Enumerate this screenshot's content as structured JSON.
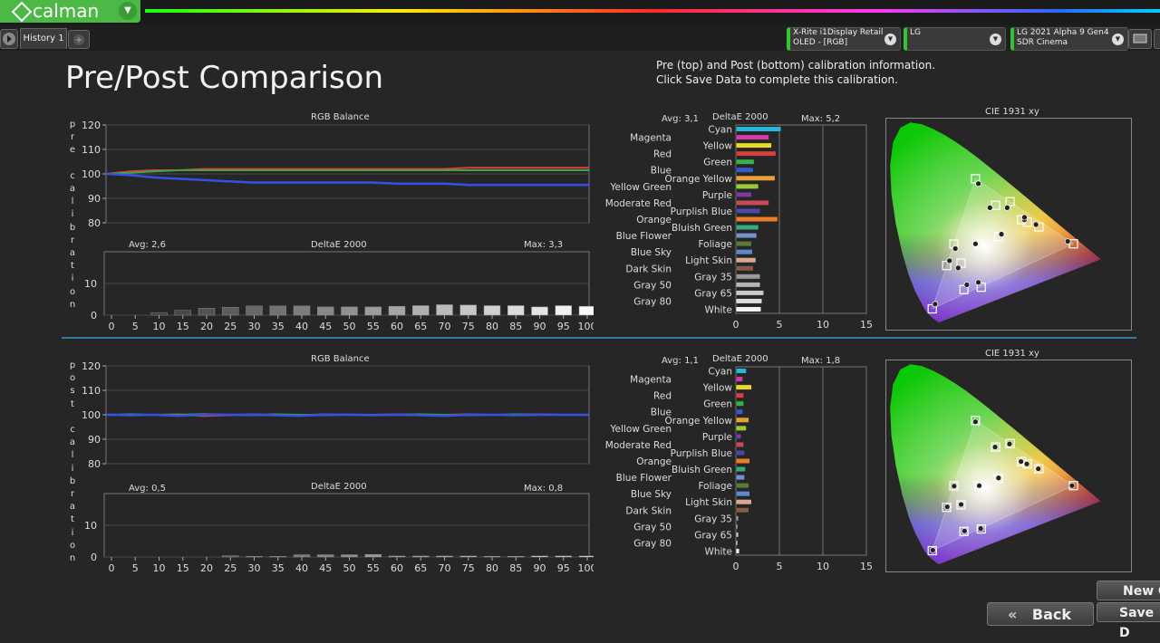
{
  "app": {
    "name": "calman",
    "tab": "History 1"
  },
  "devices": [
    {
      "line1": "X-Rite i1Display Retail",
      "line2": "OLED - [RGB]"
    },
    {
      "line1": "LG",
      "line2": ""
    },
    {
      "line1": "LG 2021 Alpha 9 Gen4",
      "line2": "SDR Cinema"
    }
  ],
  "page": {
    "title": "Pre/Post Comparison",
    "info_line1": "Pre (top) and Post (bottom) calibration information.",
    "info_line2": "Click Save Data to complete this calibration."
  },
  "labels": {
    "pre_side": "pre calibration",
    "post_side": "post calibration",
    "rgb_balance": "RGB Balance",
    "deltae": "DeltaE 2000",
    "cie": "CIE 1931 xy"
  },
  "pre": {
    "gray_avg": "Avg: 2,6",
    "gray_max": "Max: 3,3",
    "color_avg": "Avg: 3,1",
    "color_max": "Max: 5,2"
  },
  "post": {
    "gray_avg": "Avg: 0,5",
    "gray_max": "Max: 0,8",
    "color_avg": "Avg: 1,1",
    "color_max": "Max: 1,8"
  },
  "buttons": {
    "new": "New C",
    "back": "Back",
    "save": "Save D"
  },
  "chart_data": [
    {
      "type": "line",
      "title": "RGB Balance",
      "section": "pre",
      "x": [
        0,
        5,
        10,
        15,
        20,
        25,
        30,
        35,
        40,
        45,
        50,
        55,
        60,
        65,
        70,
        75,
        80,
        85,
        90,
        95,
        100
      ],
      "ylim": [
        80,
        120
      ],
      "yticks": [
        80,
        90,
        100,
        110,
        120
      ],
      "series": [
        {
          "color": "#e04040",
          "values": [
            100,
            101,
            101.5,
            101.5,
            102,
            102,
            102,
            102,
            102,
            102,
            102,
            102,
            102,
            102,
            102,
            102.5,
            102.5,
            102.5,
            102.5,
            102.5,
            102.5
          ]
        },
        {
          "color": "#3fa63f",
          "values": [
            100,
            100.5,
            101,
            101.5,
            101.5,
            101.5,
            101.5,
            101.5,
            101.5,
            101.5,
            101.5,
            101.5,
            101.5,
            101.5,
            101.5,
            101.5,
            101.5,
            101.5,
            101.5,
            101.5,
            101.5
          ]
        },
        {
          "color": "#3450e8",
          "values": [
            100,
            99.5,
            98.5,
            98,
            97.5,
            97,
            96.5,
            96.5,
            96.5,
            96.5,
            96.5,
            96.5,
            96,
            96,
            96,
            95.5,
            95.5,
            95.5,
            95.5,
            95.5,
            95.5
          ]
        }
      ]
    },
    {
      "type": "bar",
      "title": "DeltaE 2000",
      "section": "pre",
      "categories": [
        "0",
        "5",
        "10",
        "15",
        "20",
        "25",
        "30",
        "35",
        "40",
        "45",
        "50",
        "55",
        "60",
        "65",
        "70",
        "75",
        "80",
        "85",
        "90",
        "95",
        "100"
      ],
      "values": [
        0,
        0,
        0.8,
        1.5,
        2.2,
        2.5,
        2.9,
        2.9,
        2.9,
        2.6,
        2.6,
        2.6,
        2.8,
        3.0,
        3.3,
        3.2,
        3.0,
        3.0,
        2.6,
        3.0,
        2.8
      ],
      "ylim": [
        0,
        20
      ],
      "yticks": [
        0,
        10
      ]
    },
    {
      "type": "bar",
      "title": "DeltaE 2000",
      "section": "pre-colors",
      "categories": [
        "Cyan",
        "Magenta",
        "Yellow",
        "Red",
        "Green",
        "Blue",
        "Orange Yellow",
        "Yellow Green",
        "Purple",
        "Moderate Red",
        "Purplish Blue",
        "Orange",
        "Bluish Green",
        "Blue Flower",
        "Foliage",
        "Blue Sky",
        "Light Skin",
        "Dark Skin",
        "Gray 35",
        "Gray 50",
        "Gray 65",
        "Gray 80",
        "White"
      ],
      "values": [
        5.2,
        3.8,
        4.1,
        4.6,
        2.1,
        2.0,
        4.5,
        2.6,
        1.8,
        3.8,
        2.8,
        4.8,
        2.6,
        2.4,
        1.8,
        1.9,
        2.3,
        2.0,
        2.8,
        2.8,
        3.2,
        3.0,
        2.9
      ],
      "colors": [
        "#28b8d6",
        "#d23ca6",
        "#e8d82c",
        "#d84040",
        "#3cb046",
        "#3a58c8",
        "#e8a03a",
        "#9ac83a",
        "#7a3aa0",
        "#c84a5a",
        "#4a4aa8",
        "#e87e28",
        "#3aa880",
        "#7890d0",
        "#5a7a3a",
        "#5a8ac8",
        "#d8a890",
        "#8a5a48",
        "#999999",
        "#b4b4b4",
        "#c8c8c8",
        "#dcdcdc",
        "#f2f2f2"
      ],
      "xlim": [
        0,
        15
      ],
      "xticks": [
        0,
        5,
        10,
        15
      ]
    },
    {
      "type": "line",
      "title": "RGB Balance",
      "section": "post",
      "x": [
        0,
        5,
        10,
        15,
        20,
        25,
        30,
        35,
        40,
        45,
        50,
        55,
        60,
        65,
        70,
        75,
        80,
        85,
        90,
        95,
        100
      ],
      "ylim": [
        80,
        120
      ],
      "yticks": [
        80,
        90,
        100,
        110,
        120
      ],
      "series": [
        {
          "color": "#e04040",
          "values": [
            100,
            100,
            100,
            100.2,
            99.5,
            99.8,
            100.2,
            100,
            99.8,
            100.2,
            100,
            100,
            100.2,
            100,
            100,
            100.2,
            100,
            100,
            100.2,
            100,
            100
          ]
        },
        {
          "color": "#3fa63f",
          "values": [
            100,
            100.2,
            100,
            100,
            100.3,
            100,
            99.8,
            100.2,
            100,
            99.8,
            100.1,
            100,
            100,
            100.2,
            100,
            99.8,
            100,
            100.2,
            100,
            100,
            100
          ]
        },
        {
          "color": "#3450e8",
          "values": [
            100,
            99.8,
            100,
            99.6,
            100,
            100,
            100,
            99.8,
            99.6,
            100,
            100,
            99.8,
            100,
            99.8,
            99.6,
            100,
            100,
            99.8,
            100,
            100,
            100
          ]
        }
      ]
    },
    {
      "type": "bar",
      "title": "DeltaE 2000",
      "section": "post",
      "categories": [
        "0",
        "5",
        "10",
        "15",
        "20",
        "25",
        "30",
        "35",
        "40",
        "45",
        "50",
        "55",
        "60",
        "65",
        "70",
        "75",
        "80",
        "85",
        "90",
        "95",
        "100"
      ],
      "values": [
        0,
        0,
        0,
        0,
        0,
        0.4,
        0.2,
        0.2,
        0.7,
        0.7,
        0.7,
        0.8,
        0.3,
        0.3,
        0.3,
        0.3,
        0.2,
        0.2,
        0.3,
        0.3,
        0.3
      ],
      "ylim": [
        0,
        20
      ],
      "yticks": [
        0,
        10
      ]
    },
    {
      "type": "bar",
      "title": "DeltaE 2000",
      "section": "post-colors",
      "categories": [
        "Cyan",
        "Magenta",
        "Yellow",
        "Red",
        "Green",
        "Blue",
        "Orange Yellow",
        "Yellow Green",
        "Purple",
        "Moderate Red",
        "Purplish Blue",
        "Orange",
        "Bluish Green",
        "Blue Flower",
        "Foliage",
        "Blue Sky",
        "Light Skin",
        "Dark Skin",
        "Gray 35",
        "Gray 50",
        "Gray 65",
        "Gray 80",
        "White"
      ],
      "values": [
        1.2,
        0.8,
        1.8,
        0.9,
        0.9,
        0.8,
        1.5,
        1.2,
        0.6,
        0.9,
        1.0,
        1.6,
        1.1,
        1.0,
        1.5,
        1.6,
        1.8,
        1.5,
        0.3,
        0.2,
        0.3,
        0.2,
        0.4
      ],
      "colors": [
        "#28b8d6",
        "#d23ca6",
        "#e8d82c",
        "#d84040",
        "#3cb046",
        "#3a58c8",
        "#e8a03a",
        "#9ac83a",
        "#7a3aa0",
        "#c84a5a",
        "#4a4aa8",
        "#e87e28",
        "#3aa880",
        "#7890d0",
        "#5a7a3a",
        "#5a8ac8",
        "#d8a890",
        "#8a5a48",
        "#999999",
        "#b4b4b4",
        "#c8c8c8",
        "#dcdcdc",
        "#f2f2f2"
      ],
      "xlim": [
        0,
        15
      ],
      "xticks": [
        0,
        5,
        10,
        15
      ]
    }
  ],
  "cie": {
    "pre": {
      "targets": [
        [
          0.64,
          0.33
        ],
        [
          0.3,
          0.6
        ],
        [
          0.15,
          0.06
        ],
        [
          0.225,
          0.329
        ],
        [
          0.32,
          0.15
        ],
        [
          0.42,
          0.505
        ],
        [
          0.3127,
          0.329
        ],
        [
          0.48,
          0.42
        ],
        [
          0.37,
          0.49
        ],
        [
          0.2,
          0.24
        ],
        [
          0.26,
          0.14
        ],
        [
          0.46,
          0.43
        ],
        [
          0.38,
          0.36
        ],
        [
          0.25,
          0.25
        ],
        [
          0.52,
          0.4
        ]
      ],
      "measured": [
        [
          0.62,
          0.34
        ],
        [
          0.31,
          0.58
        ],
        [
          0.16,
          0.08
        ],
        [
          0.23,
          0.31
        ],
        [
          0.31,
          0.17
        ],
        [
          0.41,
          0.48
        ],
        [
          0.3,
          0.33
        ],
        [
          0.47,
          0.43
        ],
        [
          0.35,
          0.48
        ],
        [
          0.21,
          0.26
        ],
        [
          0.27,
          0.16
        ],
        [
          0.47,
          0.44
        ],
        [
          0.39,
          0.37
        ],
        [
          0.24,
          0.23
        ],
        [
          0.51,
          0.41
        ]
      ]
    },
    "post": {
      "targets": [
        [
          0.64,
          0.33
        ],
        [
          0.3,
          0.6
        ],
        [
          0.15,
          0.06
        ],
        [
          0.225,
          0.329
        ],
        [
          0.32,
          0.15
        ],
        [
          0.42,
          0.505
        ],
        [
          0.3127,
          0.329
        ],
        [
          0.48,
          0.42
        ],
        [
          0.37,
          0.49
        ],
        [
          0.2,
          0.24
        ],
        [
          0.26,
          0.14
        ],
        [
          0.46,
          0.43
        ],
        [
          0.38,
          0.36
        ],
        [
          0.25,
          0.25
        ],
        [
          0.52,
          0.4
        ]
      ],
      "measured": [
        [
          0.635,
          0.33
        ],
        [
          0.3,
          0.595
        ],
        [
          0.152,
          0.062
        ],
        [
          0.226,
          0.328
        ],
        [
          0.318,
          0.152
        ],
        [
          0.418,
          0.503
        ],
        [
          0.313,
          0.33
        ],
        [
          0.478,
          0.42
        ],
        [
          0.368,
          0.49
        ],
        [
          0.202,
          0.242
        ],
        [
          0.262,
          0.142
        ],
        [
          0.458,
          0.43
        ],
        [
          0.38,
          0.362
        ],
        [
          0.25,
          0.252
        ],
        [
          0.518,
          0.4
        ]
      ]
    }
  }
}
